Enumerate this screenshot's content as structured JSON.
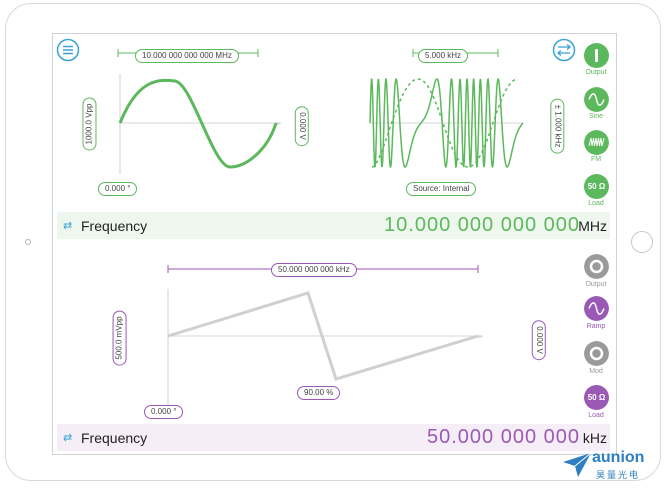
{
  "colors": {
    "channel1": "#5cb85c",
    "channel2": "#9b59b6",
    "ch2_wave": "#d0d0d0",
    "accent_blue": "#3aa3d9"
  },
  "channel1": {
    "menu_icon": "menu-icon",
    "settings_icon": "sliders-icon",
    "freq_pill": "10.000 000 000 000 MHz",
    "amplitude_pill": "1000.0 Vpp",
    "offset_pill": "0.000 V",
    "phase_pill": "0.000 °",
    "mod_freq_pill": "5.000 kHz",
    "mod_dev_pill": "± 1.000 kHz",
    "source_pill": "Source: Internal",
    "frequency_label": "Frequency",
    "frequency_value": "10.000 000 000 000",
    "frequency_unit": "MHz",
    "buttons": [
      {
        "name": "output-button",
        "label": "Output",
        "icon": "power-icon"
      },
      {
        "name": "waveform-button",
        "label": "Sine",
        "icon": "sine-wave-icon"
      },
      {
        "name": "modulation-button",
        "label": "FM",
        "icon": "fm-icon"
      },
      {
        "name": "load-button",
        "label": "Load",
        "icon_text": "50 Ω"
      }
    ]
  },
  "channel2": {
    "freq_pill": "50.000 000 000 kHz",
    "amplitude_pill": "500.0 mVpp",
    "offset_pill": "0.000 V",
    "phase_pill": "0.000 °",
    "symmetry_pill": "90.00 %",
    "frequency_label": "Frequency",
    "frequency_value": "50.000 000 000",
    "frequency_unit": "kHz",
    "buttons": [
      {
        "name": "output-button",
        "label": "Output",
        "icon": "power-icon"
      },
      {
        "name": "waveform-button",
        "label": "Ramp",
        "icon": "ramp-wave-icon"
      },
      {
        "name": "modulation-button",
        "label": "Mod",
        "icon": "power-icon"
      },
      {
        "name": "load-button",
        "label": "Load",
        "icon_text": "50 Ω"
      }
    ]
  },
  "brand": {
    "name": "aunion",
    "subtitle": "昊量光电"
  }
}
